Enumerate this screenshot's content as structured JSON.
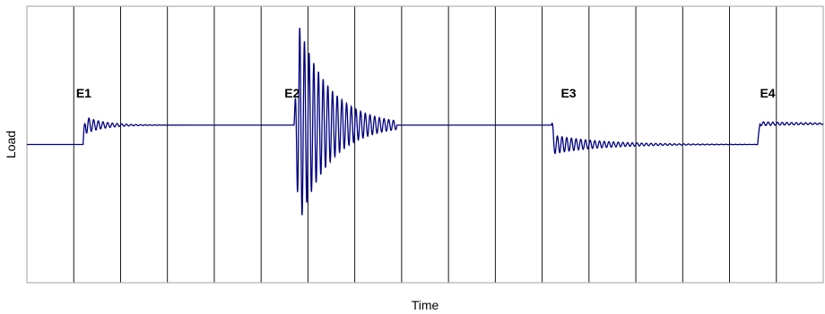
{
  "chart_data": {
    "type": "line",
    "title": "",
    "xlabel": "Time",
    "ylabel": "Load",
    "grid": {
      "vertical": true,
      "horizontal": false
    },
    "x_divisions": 17,
    "ylim": [
      -1.0,
      1.0
    ],
    "xlim": [
      0,
      17
    ],
    "baseline_level": 0.0,
    "annotations": [
      {
        "label": "E1",
        "x": 1.05,
        "y": 0.34
      },
      {
        "label": "E2",
        "x": 5.5,
        "y": 0.34
      },
      {
        "label": "E3",
        "x": 11.4,
        "y": 0.34
      },
      {
        "label": "E4",
        "x": 15.65,
        "y": 0.34
      }
    ],
    "series": [
      {
        "color": "#000080",
        "segments": [
          {
            "kind": "flat",
            "x0": 0.0,
            "x1": 1.2,
            "level": 0.0
          },
          {
            "kind": "step_oscillation",
            "x0": 1.2,
            "x1": 5.7,
            "from": 0.0,
            "to": 0.14,
            "amplitude": 0.07,
            "period": 0.1,
            "decay": 2.5
          },
          {
            "kind": "burst_oscillation",
            "x0": 5.7,
            "x1": 7.9,
            "from": 0.14,
            "to": 0.14,
            "amplitude": 0.85,
            "period": 0.1,
            "decay": 1.5
          },
          {
            "kind": "flat",
            "x0": 7.9,
            "x1": 11.2,
            "level": 0.14
          },
          {
            "kind": "step_oscillation",
            "x0": 11.2,
            "x1": 15.6,
            "from": 0.14,
            "to": 0.0,
            "amplitude": 0.07,
            "period": 0.1,
            "decay": 1.0
          },
          {
            "kind": "step_oscillation",
            "x0": 15.6,
            "x1": 17.0,
            "from": 0.0,
            "to": 0.15,
            "amplitude": 0.015,
            "period": 0.1,
            "decay": 0.8
          }
        ]
      }
    ]
  }
}
